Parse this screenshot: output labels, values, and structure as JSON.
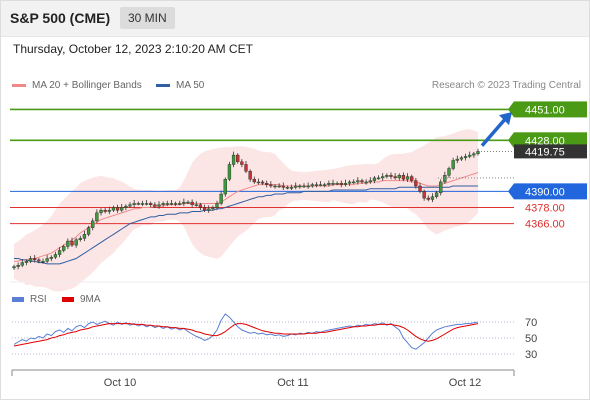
{
  "header": {
    "instrument": "S&P 500 (CME)",
    "timeframe": "30 MIN",
    "datetime": "Thursday, October 12, 2023 2:10:20 AM CET",
    "copyright": "Research © 2023 Trading Central"
  },
  "legend": {
    "ma20": {
      "label": "MA 20 + Bollinger Bands",
      "color": "#f08a8a"
    },
    "ma50": {
      "label": "MA 50",
      "color": "#2e5fa3"
    },
    "rsi": {
      "label": "RSI",
      "color": "#5b7fd6"
    },
    "rsi_ma": {
      "label": "9MA",
      "color": "#e00000"
    }
  },
  "colors": {
    "green": "#4a9a16",
    "blue": "#2266dd",
    "red": "#e03030",
    "candle_up": "#3c9a3c",
    "candle_down": "#c83232"
  },
  "chart_data": [
    {
      "type": "candlestick",
      "x_ticks": [
        "Oct 10",
        "Oct 11",
        "Oct 12"
      ],
      "ylim": [
        4327,
        4458
      ],
      "levels": [
        {
          "value": 4451.0,
          "label": "4451.00",
          "kind": "resistance",
          "color": "#4a9a16"
        },
        {
          "value": 4428.0,
          "label": "4428.00",
          "kind": "resistance",
          "color": "#4a9a16"
        },
        {
          "value": 4390.0,
          "label": "4390.00",
          "kind": "pivot",
          "color": "#2266dd"
        },
        {
          "value": 4378.0,
          "label": "4378.00",
          "kind": "support",
          "color": "#e03030"
        },
        {
          "value": 4366.0,
          "label": "4366.00",
          "kind": "support",
          "color": "#e03030"
        }
      ],
      "current_price": {
        "value": 4419.75,
        "label": "4419.75"
      },
      "series": [
        {
          "name": "Price",
          "values": [
            4334,
            4335,
            4337,
            4338,
            4340,
            4339,
            4338,
            4338,
            4340,
            4341,
            4343,
            4346,
            4349,
            4353,
            4350,
            4354,
            4355,
            4358,
            4363,
            4368,
            4374,
            4376,
            4375,
            4376,
            4378,
            4376,
            4378,
            4379,
            4380,
            4381,
            4381,
            4381,
            4381,
            4380,
            4379,
            4380,
            4381,
            4381,
            4381,
            4381,
            4381,
            4382,
            4382,
            4380,
            4380,
            4378,
            4376,
            4377,
            4378,
            4381,
            4388,
            4399,
            4410,
            4417,
            4412,
            4410,
            4405,
            4399,
            4397,
            4397,
            4396,
            4395,
            4394,
            4394,
            4394,
            4393,
            4393,
            4393,
            4394,
            4394,
            4394,
            4394,
            4395,
            4395,
            4395,
            4395,
            4396,
            4396,
            4396,
            4395,
            4396,
            4397,
            4397,
            4398,
            4397,
            4397,
            4398,
            4400,
            4400,
            4401,
            4402,
            4401,
            4400,
            4402,
            4399,
            4401,
            4398,
            4394,
            4390,
            4385,
            4384,
            4386,
            4389,
            4397,
            4402,
            4407,
            4413,
            4414,
            4415,
            4416,
            4417,
            4418,
            4419.75
          ]
        },
        {
          "name": "MA 20",
          "values": [
            4338,
            4338,
            4339,
            4339,
            4340,
            4340,
            4341,
            4342,
            4343,
            4344,
            4346,
            4348,
            4350,
            4352,
            4354,
            4356,
            4359,
            4361,
            4363,
            4365,
            4367,
            4369,
            4370,
            4371,
            4372,
            4373,
            4374,
            4375,
            4376,
            4377,
            4377,
            4378,
            4378,
            4378,
            4379,
            4379,
            4379,
            4380,
            4380,
            4380,
            4380,
            4381,
            4381,
            4381,
            4381,
            4381,
            4381,
            4381,
            4381,
            4381,
            4382,
            4384,
            4386,
            4388,
            4390,
            4391,
            4392,
            4393,
            4394,
            4395,
            4395,
            4395,
            4395,
            4395,
            4395,
            4394,
            4394,
            4394,
            4394,
            4394,
            4394,
            4394,
            4394,
            4394,
            4394,
            4394,
            4394,
            4395,
            4395,
            4395,
            4395,
            4395,
            4395,
            4396,
            4396,
            4396,
            4397,
            4397,
            4397,
            4398,
            4398,
            4398,
            4398,
            4398,
            4398,
            4398,
            4397,
            4397,
            4396,
            4395,
            4394,
            4394,
            4394,
            4395,
            4396,
            4397,
            4398,
            4399,
            4400,
            4401,
            4402,
            4403,
            4404
          ]
        },
        {
          "name": "MA 50",
          "values": [
            4340,
            4340,
            4339,
            4339,
            4338,
            4338,
            4337,
            4337,
            4336,
            4336,
            4336,
            4336,
            4337,
            4338,
            4339,
            4340,
            4342,
            4344,
            4346,
            4348,
            4350,
            4352,
            4354,
            4356,
            4358,
            4360,
            4362,
            4364,
            4366,
            4367,
            4368,
            4369,
            4370,
            4371,
            4371,
            4372,
            4372,
            4373,
            4373,
            4373,
            4374,
            4374,
            4374,
            4375,
            4375,
            4375,
            4376,
            4376,
            4376,
            4377,
            4377,
            4378,
            4379,
            4380,
            4381,
            4382,
            4383,
            4384,
            4385,
            4386,
            4386,
            4387,
            4387,
            4388,
            4388,
            4388,
            4389,
            4389,
            4389,
            4389,
            4390,
            4390,
            4390,
            4390,
            4390,
            4390,
            4390,
            4391,
            4391,
            4391,
            4391,
            4391,
            4391,
            4391,
            4391,
            4391,
            4392,
            4392,
            4392,
            4392,
            4392,
            4392,
            4392,
            4393,
            4393,
            4393,
            4393,
            4393,
            4393,
            4393,
            4393,
            4393,
            4393,
            4393,
            4393,
            4393,
            4394,
            4394,
            4394,
            4394,
            4394,
            4394,
            4394
          ]
        }
      ]
    },
    {
      "type": "line",
      "x_ticks": [
        "Oct 10",
        "Oct 11",
        "Oct 12"
      ],
      "y_ticks": [
        70,
        50,
        30
      ],
      "ylim": [
        20,
        80
      ],
      "series": [
        {
          "name": "RSI",
          "values": [
            42,
            45,
            48,
            46,
            50,
            49,
            52,
            50,
            55,
            53,
            58,
            60,
            57,
            62,
            59,
            64,
            66,
            63,
            68,
            70,
            67,
            69,
            71,
            68,
            66,
            70,
            67,
            69,
            66,
            68,
            65,
            67,
            64,
            66,
            63,
            65,
            62,
            64,
            61,
            63,
            60,
            62,
            58,
            55,
            52,
            50,
            47,
            49,
            53,
            60,
            72,
            80,
            76,
            70,
            64,
            60,
            58,
            56,
            57,
            55,
            56,
            54,
            55,
            53,
            54,
            52,
            53,
            55,
            54,
            56,
            55,
            57,
            56,
            58,
            57,
            59,
            60,
            61,
            62,
            63,
            64,
            65,
            64,
            66,
            65,
            67,
            66,
            68,
            67,
            69,
            66,
            68,
            64,
            60,
            50,
            44,
            38,
            36,
            40,
            44,
            50,
            56,
            60,
            62,
            64,
            65,
            66,
            67,
            67,
            68,
            68,
            69,
            70
          ]
        },
        {
          "name": "9MA",
          "values": [
            40,
            41,
            42,
            43,
            44,
            45,
            46,
            47,
            48,
            50,
            51,
            53,
            54,
            56,
            57,
            58,
            60,
            61,
            62,
            64,
            65,
            66,
            67,
            68,
            68,
            68,
            68,
            68,
            68,
            67,
            67,
            67,
            66,
            66,
            65,
            65,
            64,
            64,
            63,
            63,
            62,
            62,
            61,
            60,
            58,
            57,
            55,
            54,
            53,
            53,
            55,
            58,
            62,
            66,
            68,
            68,
            67,
            65,
            63,
            61,
            59,
            58,
            57,
            56,
            56,
            55,
            55,
            55,
            55,
            55,
            55,
            56,
            56,
            56,
            57,
            57,
            58,
            59,
            60,
            61,
            62,
            63,
            64,
            64,
            65,
            65,
            66,
            66,
            67,
            67,
            67,
            67,
            66,
            65,
            63,
            60,
            56,
            52,
            49,
            47,
            46,
            47,
            49,
            52,
            55,
            58,
            61,
            63,
            64,
            65,
            66,
            67,
            68
          ]
        }
      ]
    }
  ]
}
